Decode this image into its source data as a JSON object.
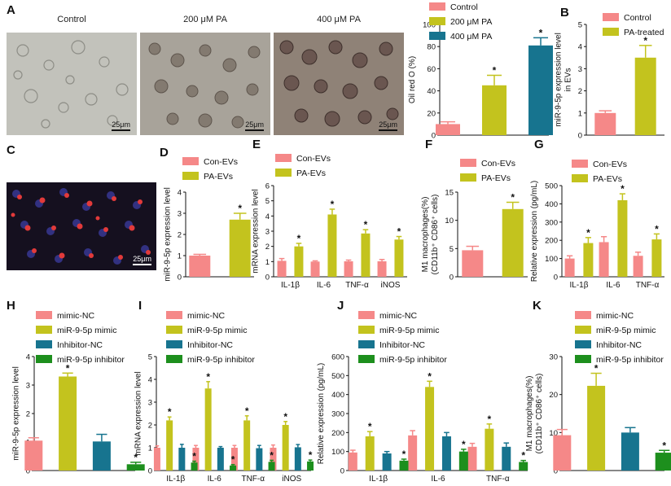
{
  "colors": {
    "salmon": "#f58888",
    "olive": "#c3c31e",
    "teal": "#17748f",
    "green": "#1d8f1d"
  },
  "photos": {
    "panel_letter_a": "A",
    "panel_letter_c": "C",
    "a_titles": [
      "Control",
      "200 μM PA",
      "400 μM PA"
    ],
    "scale_label": "25μm"
  },
  "chart_data": [
    {
      "id": "A",
      "letter": "",
      "type": "bar",
      "ylabel": [
        "Oil red O (%)"
      ],
      "ylim": [
        0,
        100
      ],
      "ticks": [
        0,
        20,
        40,
        60,
        80,
        100
      ],
      "legend": [
        "Control",
        "200 μM PA",
        "400 μM PA"
      ],
      "categories": [
        ""
      ],
      "series": [
        {
          "name": "Control",
          "color": "salmon",
          "values": [
            10
          ],
          "err": [
            2
          ],
          "star": [
            false
          ]
        },
        {
          "name": "200 μM PA",
          "color": "olive",
          "values": [
            45
          ],
          "err": [
            9
          ],
          "star": [
            true
          ]
        },
        {
          "name": "400 μM PA",
          "color": "teal",
          "values": [
            81
          ],
          "err": [
            7
          ],
          "star": [
            true
          ]
        }
      ]
    },
    {
      "id": "B",
      "letter": "B",
      "type": "bar",
      "ylabel": [
        "miR-9-5p expression level",
        "in EVs"
      ],
      "ylim": [
        0,
        5
      ],
      "ticks": [
        0,
        1,
        2,
        3,
        4,
        5
      ],
      "legend": [
        "Control",
        "PA-treated"
      ],
      "categories": [
        ""
      ],
      "series": [
        {
          "name": "Control",
          "color": "salmon",
          "values": [
            1.0
          ],
          "err": [
            0.1
          ],
          "star": [
            false
          ]
        },
        {
          "name": "PA-treated",
          "color": "olive",
          "values": [
            3.5
          ],
          "err": [
            0.55
          ],
          "star": [
            true
          ]
        }
      ]
    },
    {
      "id": "D",
      "letter": "D",
      "type": "bar",
      "ylabel": [
        "miR-9-5p expression level"
      ],
      "ylim": [
        0,
        4
      ],
      "ticks": [
        0,
        1,
        2,
        3,
        4
      ],
      "legend": [
        "Con-EVs",
        "PA-EVs"
      ],
      "categories": [
        ""
      ],
      "series": [
        {
          "name": "Con-EVs",
          "color": "salmon",
          "values": [
            1.0
          ],
          "err": [
            0.06
          ],
          "star": [
            false
          ]
        },
        {
          "name": "PA-EVs",
          "color": "olive",
          "values": [
            2.7
          ],
          "err": [
            0.3
          ],
          "star": [
            true
          ]
        }
      ]
    },
    {
      "id": "E",
      "letter": "E",
      "type": "bar",
      "ylabel": [
        "mRNA expression level"
      ],
      "ylim": [
        0,
        6
      ],
      "ticks": [
        0,
        1,
        2,
        3,
        4,
        5,
        6
      ],
      "legend": [
        "Con-EVs",
        "PA-EVs"
      ],
      "categories": [
        "IL-1β",
        "IL-6",
        "TNF-α",
        "iNOS"
      ],
      "series": [
        {
          "name": "Con-EVs",
          "color": "salmon",
          "values": [
            1.05,
            1.0,
            1.02,
            1.02
          ],
          "err": [
            0.15,
            0.05,
            0.08,
            0.12
          ],
          "star": [
            false,
            false,
            false,
            false
          ]
        },
        {
          "name": "PA-EVs",
          "color": "olive",
          "values": [
            2.0,
            4.1,
            2.85,
            2.45
          ],
          "err": [
            0.2,
            0.35,
            0.25,
            0.2
          ],
          "star": [
            true,
            true,
            true,
            true
          ]
        }
      ]
    },
    {
      "id": "F",
      "letter": "F",
      "type": "bar",
      "ylabel": [
        "M1 macrophages(%)",
        "(CD11b⁺ CD86⁺ cells)"
      ],
      "ylim": [
        0,
        15
      ],
      "ticks": [
        0,
        5,
        10,
        15
      ],
      "legend": [
        "Con-EVs",
        "PA-EVs"
      ],
      "categories": [
        ""
      ],
      "series": [
        {
          "name": "Con-EVs",
          "color": "salmon",
          "values": [
            4.7
          ],
          "err": [
            0.7
          ],
          "star": [
            false
          ]
        },
        {
          "name": "PA-EVs",
          "color": "olive",
          "values": [
            12.0
          ],
          "err": [
            1.2
          ],
          "star": [
            true
          ]
        }
      ]
    },
    {
      "id": "G",
      "letter": "G",
      "type": "bar",
      "ylabel": [
        "Relative expression (pg/mL)"
      ],
      "ylim": [
        0,
        500
      ],
      "ticks": [
        0,
        100,
        200,
        300,
        400,
        500
      ],
      "legend": [
        "Con-EVs",
        "PA-EVs"
      ],
      "categories": [
        "IL-1β",
        "IL-6",
        "TNF-α"
      ],
      "series": [
        {
          "name": "Con-EVs",
          "color": "salmon",
          "values": [
            100,
            190,
            115
          ],
          "err": [
            15,
            30,
            20
          ],
          "star": [
            false,
            false,
            false
          ]
        },
        {
          "name": "PA-EVs",
          "color": "olive",
          "values": [
            185,
            420,
            205
          ],
          "err": [
            30,
            35,
            30
          ],
          "star": [
            true,
            true,
            true
          ]
        }
      ]
    },
    {
      "id": "H",
      "letter": "H",
      "type": "bar",
      "ylabel": [
        "miR-9-5p expression level"
      ],
      "ylim": [
        0,
        4
      ],
      "ticks": [
        0,
        1,
        2,
        3,
        4
      ],
      "legend": [
        "mimic-NC",
        "miR-9-5p mimic",
        "Inhibitor-NC",
        "miR-9-5p inhibitor"
      ],
      "categories": [
        ""
      ],
      "series": [
        {
          "name": "mimic-NC",
          "color": "salmon",
          "values": [
            1.05
          ],
          "err": [
            0.1
          ],
          "star": [
            false
          ]
        },
        {
          "name": "miR-9-5p mimic",
          "color": "olive",
          "values": [
            3.3
          ],
          "err": [
            0.12
          ],
          "star": [
            true
          ]
        },
        {
          "name": "Inhibitor-NC",
          "color": "teal",
          "values": [
            1.02
          ],
          "err": [
            0.25
          ],
          "star": [
            false
          ]
        },
        {
          "name": "miR-9-5p inhibitor",
          "color": "green",
          "values": [
            0.22
          ],
          "err": [
            0.07
          ],
          "star": [
            true
          ]
        }
      ]
    },
    {
      "id": "I",
      "letter": "I",
      "type": "bar",
      "ylabel": [
        "mRNA expression level"
      ],
      "ylim": [
        0,
        5
      ],
      "ticks": [
        0,
        1,
        2,
        3,
        4,
        5
      ],
      "legend": [
        "mimic-NC",
        "miR-9-5p mimic",
        "Inhibitor-NC",
        "miR-9-5p inhibitor"
      ],
      "categories": [
        "IL-1β",
        "IL-6",
        "TNF-α",
        "iNOS"
      ],
      "series": [
        {
          "name": "mimic-NC",
          "color": "salmon",
          "values": [
            1.0,
            1.0,
            1.0,
            1.0
          ],
          "err": [
            0.08,
            0.1,
            0.1,
            0.12
          ],
          "star": [
            false,
            false,
            false,
            false
          ]
        },
        {
          "name": "miR-9-5p mimic",
          "color": "olive",
          "values": [
            2.2,
            3.6,
            2.2,
            2.0
          ],
          "err": [
            0.15,
            0.3,
            0.2,
            0.15
          ],
          "star": [
            true,
            true,
            true,
            true
          ]
        },
        {
          "name": "Inhibitor-NC",
          "color": "teal",
          "values": [
            1.0,
            1.0,
            0.98,
            1.02
          ],
          "err": [
            0.15,
            0.05,
            0.12,
            0.12
          ],
          "star": [
            false,
            false,
            false,
            false
          ]
        },
        {
          "name": "miR-9-5p inhibitor",
          "color": "green",
          "values": [
            0.35,
            0.22,
            0.38,
            0.4
          ],
          "err": [
            0.06,
            0.04,
            0.07,
            0.06
          ],
          "star": [
            true,
            true,
            true,
            true
          ]
        }
      ]
    },
    {
      "id": "J",
      "letter": "J",
      "type": "bar",
      "ylabel": [
        "Relative expression (pg/mL)"
      ],
      "ylim": [
        0,
        600
      ],
      "ticks": [
        0,
        100,
        200,
        300,
        400,
        500,
        600
      ],
      "legend": [
        "mimic-NC",
        "miR-9-5p mimic",
        "Inhibitor-NC",
        "miR-9-5p inhibitor"
      ],
      "categories": [
        "IL-1β",
        "IL-6",
        "TNF-α"
      ],
      "series": [
        {
          "name": "mimic-NC",
          "color": "salmon",
          "values": [
            95,
            185,
            125
          ],
          "err": [
            12,
            25,
            18
          ],
          "star": [
            false,
            false,
            false
          ]
        },
        {
          "name": "miR-9-5p mimic",
          "color": "olive",
          "values": [
            180,
            440,
            220
          ],
          "err": [
            25,
            30,
            25
          ],
          "star": [
            true,
            true,
            true
          ]
        },
        {
          "name": "Inhibitor-NC",
          "color": "teal",
          "values": [
            90,
            180,
            125
          ],
          "err": [
            10,
            20,
            20
          ],
          "star": [
            false,
            false,
            false
          ]
        },
        {
          "name": "miR-9-5p inhibitor",
          "color": "green",
          "values": [
            52,
            100,
            45
          ],
          "err": [
            8,
            12,
            8
          ],
          "star": [
            true,
            true,
            true
          ]
        }
      ]
    },
    {
      "id": "K",
      "letter": "K",
      "type": "bar",
      "ylabel": [
        "M1 macrophages(%)",
        "(CD11b⁺ CD86⁺ cells)"
      ],
      "ylim": [
        0,
        30
      ],
      "ticks": [
        0,
        10,
        20,
        30
      ],
      "legend": [
        "mimic-NC",
        "miR-9-5p mimic",
        "Inhibitor-NC",
        "miR-9-5p inhibitor"
      ],
      "categories": [
        ""
      ],
      "series": [
        {
          "name": "mimic-NC",
          "color": "salmon",
          "values": [
            9.3
          ],
          "err": [
            1.5
          ],
          "star": [
            false
          ]
        },
        {
          "name": "miR-9-5p mimic",
          "color": "olive",
          "values": [
            22.3
          ],
          "err": [
            3.3
          ],
          "star": [
            true
          ]
        },
        {
          "name": "Inhibitor-NC",
          "color": "teal",
          "values": [
            10.0
          ],
          "err": [
            1.3
          ],
          "star": [
            false
          ]
        },
        {
          "name": "miR-9-5p inhibitor",
          "color": "green",
          "values": [
            4.7
          ],
          "err": [
            0.6
          ],
          "star": [
            true
          ]
        }
      ]
    }
  ]
}
